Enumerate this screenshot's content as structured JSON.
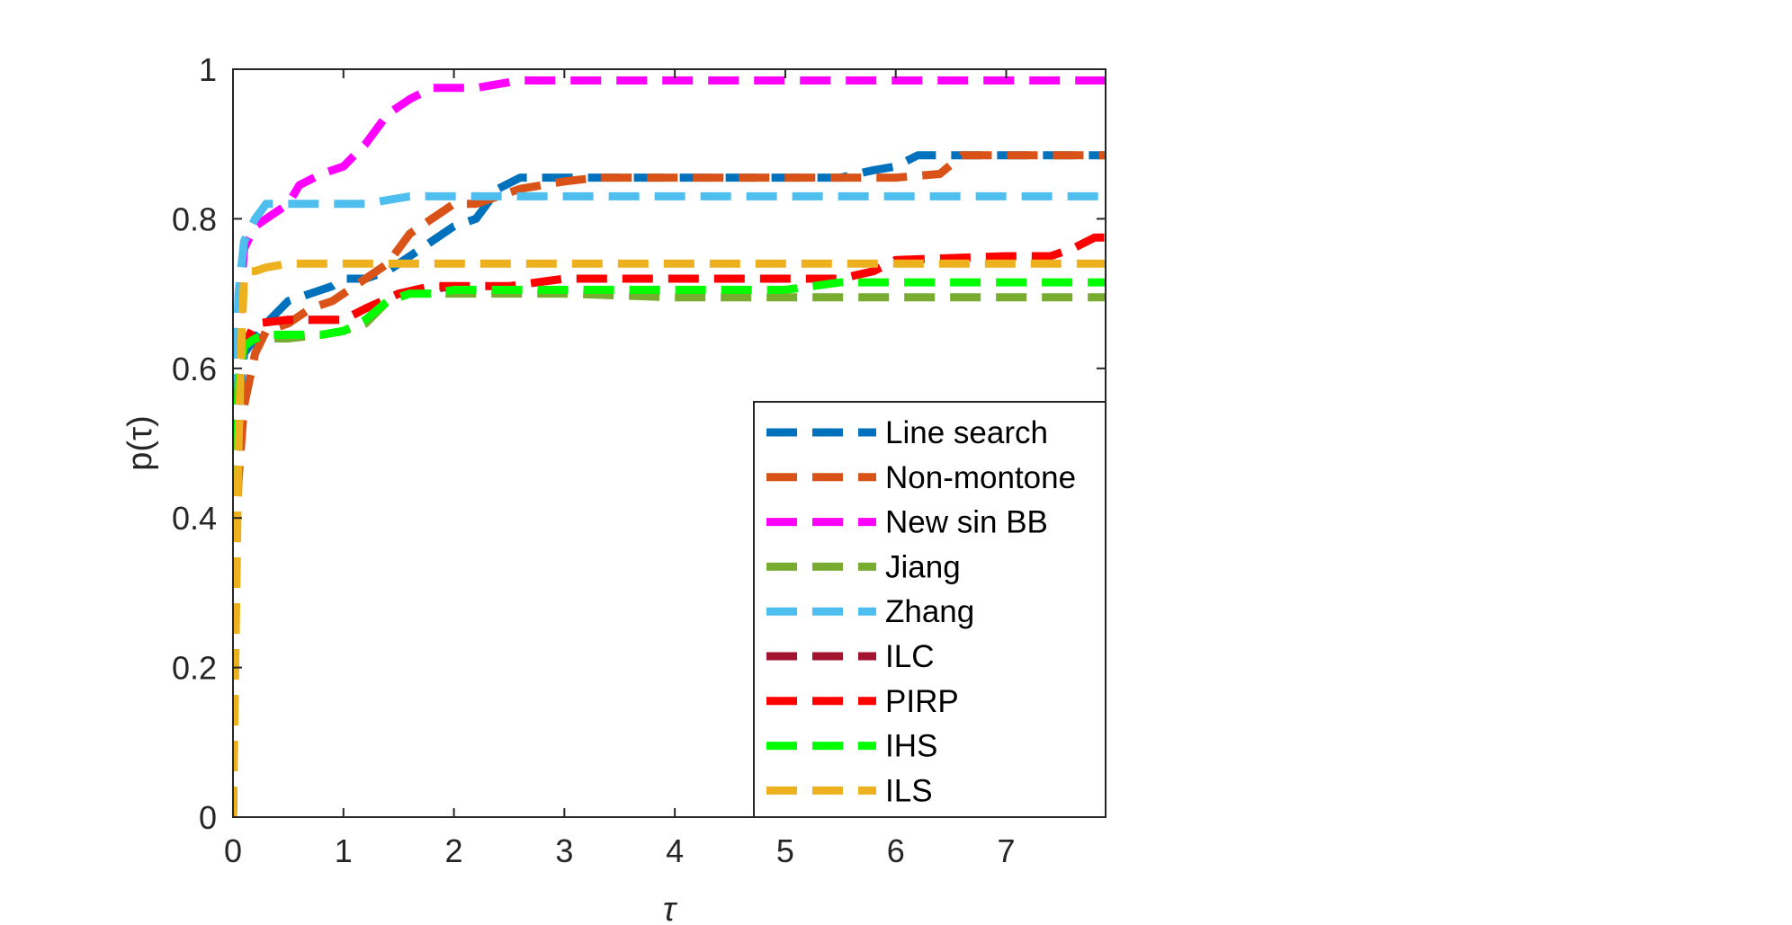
{
  "chart_data": {
    "type": "line",
    "title": "",
    "xlabel": "τ",
    "ylabel": "p(τ)",
    "xlim": [
      0,
      7.9
    ],
    "ylim": [
      0,
      1
    ],
    "xticks": [
      "0",
      "1",
      "2",
      "3",
      "4",
      "5",
      "6",
      "7"
    ],
    "yticks": [
      "0",
      "0.2",
      "0.4",
      "0.6",
      "0.8",
      "1"
    ],
    "grid": false,
    "legend_position": "bottom-right",
    "series": [
      {
        "name": "Line search",
        "color": "#0072BD",
        "x": [
          0,
          0.02,
          0.05,
          0.1,
          0.2,
          0.3,
          0.5,
          0.7,
          0.9,
          1.0,
          1.2,
          1.4,
          1.6,
          1.8,
          2.0,
          2.2,
          2.4,
          2.6,
          2.8,
          3.0,
          3.5,
          4.0,
          5.0,
          5.5,
          5.8,
          6.0,
          6.2,
          6.5,
          7.0,
          7.9
        ],
        "y": [
          0,
          0.45,
          0.55,
          0.62,
          0.64,
          0.66,
          0.69,
          0.7,
          0.71,
          0.72,
          0.72,
          0.73,
          0.75,
          0.77,
          0.79,
          0.8,
          0.84,
          0.855,
          0.855,
          0.855,
          0.855,
          0.855,
          0.855,
          0.855,
          0.865,
          0.87,
          0.885,
          0.885,
          0.885,
          0.885
        ]
      },
      {
        "name": "Non-montone",
        "color": "#D95319",
        "x": [
          0,
          0.02,
          0.05,
          0.1,
          0.2,
          0.3,
          0.5,
          0.7,
          0.9,
          1.0,
          1.2,
          1.4,
          1.6,
          1.8,
          2.0,
          2.2,
          2.4,
          2.6,
          2.8,
          3.0,
          3.3,
          3.5,
          4.0,
          5.0,
          5.5,
          6.0,
          6.4,
          6.6,
          7.0,
          7.9
        ],
        "y": [
          0,
          0.35,
          0.45,
          0.55,
          0.62,
          0.65,
          0.66,
          0.68,
          0.69,
          0.7,
          0.72,
          0.74,
          0.78,
          0.8,
          0.82,
          0.82,
          0.83,
          0.84,
          0.845,
          0.85,
          0.855,
          0.855,
          0.855,
          0.855,
          0.855,
          0.855,
          0.86,
          0.885,
          0.885,
          0.885
        ]
      },
      {
        "name": "New sin BB",
        "color": "#FF00FF",
        "x": [
          0,
          0.02,
          0.05,
          0.1,
          0.2,
          0.3,
          0.5,
          0.6,
          0.8,
          1.0,
          1.2,
          1.4,
          1.6,
          1.8,
          2.0,
          2.2,
          2.4,
          2.6,
          3.0,
          4.0,
          5.0,
          6.0,
          7.0,
          7.9
        ],
        "y": [
          0,
          0.5,
          0.65,
          0.76,
          0.79,
          0.8,
          0.82,
          0.845,
          0.86,
          0.87,
          0.9,
          0.94,
          0.96,
          0.975,
          0.975,
          0.975,
          0.98,
          0.985,
          0.985,
          0.985,
          0.985,
          0.985,
          0.985,
          0.985
        ]
      },
      {
        "name": "Jiang",
        "color": "#77AC30",
        "x": [
          0,
          0.02,
          0.05,
          0.1,
          0.2,
          0.3,
          0.5,
          0.8,
          1.0,
          1.2,
          1.4,
          1.6,
          1.8,
          2.0,
          3.0,
          4.0,
          5.0,
          6.0,
          7.0,
          7.9
        ],
        "y": [
          0,
          0.45,
          0.58,
          0.63,
          0.64,
          0.64,
          0.64,
          0.645,
          0.65,
          0.66,
          0.69,
          0.7,
          0.7,
          0.7,
          0.7,
          0.695,
          0.695,
          0.695,
          0.695,
          0.695
        ]
      },
      {
        "name": "Zhang",
        "color": "#4DBEEE",
        "x": [
          0,
          0.02,
          0.05,
          0.1,
          0.2,
          0.3,
          0.5,
          0.8,
          1.0,
          1.2,
          1.4,
          1.6,
          2.0,
          3.0,
          4.0,
          5.0,
          6.0,
          7.0,
          7.9
        ],
        "y": [
          0,
          0.55,
          0.7,
          0.77,
          0.8,
          0.82,
          0.82,
          0.82,
          0.82,
          0.82,
          0.825,
          0.83,
          0.83,
          0.83,
          0.83,
          0.83,
          0.83,
          0.83,
          0.83
        ]
      },
      {
        "name": "ILC",
        "color": "#A2142F",
        "x": [
          0,
          0.02,
          0.05,
          0.1,
          0.2,
          0.5,
          1.0,
          1.2,
          1.5,
          2.0
        ],
        "y": [
          0,
          0.45,
          0.58,
          0.63,
          0.66,
          0.665,
          0.665,
          0.68,
          0.7,
          0.71
        ]
      },
      {
        "name": "PIRP",
        "color": "#FF0000",
        "x": [
          0,
          0.02,
          0.05,
          0.1,
          0.2,
          0.5,
          1.0,
          1.2,
          1.5,
          1.8,
          2.0,
          2.5,
          3.0,
          4.0,
          5.0,
          5.5,
          5.8,
          6.0,
          7.0,
          7.4,
          7.6,
          7.8,
          7.9
        ],
        "y": [
          0,
          0.45,
          0.58,
          0.63,
          0.66,
          0.665,
          0.665,
          0.68,
          0.7,
          0.71,
          0.71,
          0.71,
          0.72,
          0.72,
          0.72,
          0.72,
          0.73,
          0.745,
          0.75,
          0.75,
          0.76,
          0.775,
          0.775
        ]
      },
      {
        "name": "IHS",
        "color": "#00FF00",
        "x": [
          0,
          0.02,
          0.05,
          0.1,
          0.2,
          0.3,
          0.5,
          0.8,
          1.0,
          1.2,
          1.4,
          1.6,
          1.8,
          2.0,
          3.0,
          4.0,
          5.0,
          5.5,
          6.0,
          7.0,
          7.9
        ],
        "y": [
          0,
          0.45,
          0.58,
          0.63,
          0.64,
          0.645,
          0.645,
          0.645,
          0.65,
          0.665,
          0.69,
          0.7,
          0.7,
          0.705,
          0.705,
          0.705,
          0.705,
          0.715,
          0.715,
          0.715,
          0.715
        ]
      },
      {
        "name": "ILS",
        "color": "#EDB120",
        "x": [
          0,
          0.02,
          0.05,
          0.08,
          0.1,
          0.15,
          0.2,
          0.3,
          0.5,
          1.0,
          2.0,
          3.0,
          4.0,
          5.0,
          6.0,
          7.0,
          7.9
        ],
        "y": [
          0,
          0.2,
          0.5,
          0.65,
          0.72,
          0.73,
          0.73,
          0.735,
          0.74,
          0.74,
          0.74,
          0.74,
          0.74,
          0.74,
          0.74,
          0.74,
          0.74
        ]
      }
    ]
  }
}
